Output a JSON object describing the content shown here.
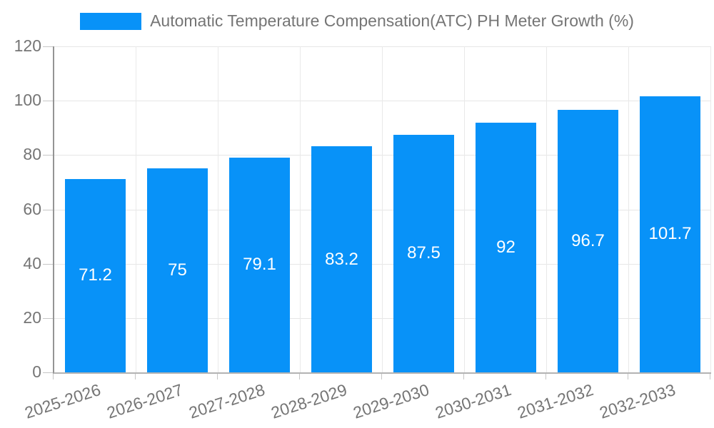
{
  "legend": {
    "series_label": "Automatic Temperature Compensation(ATC) PH Meter Growth (%)"
  },
  "chart_data": {
    "type": "bar",
    "title": "Automatic Temperature Compensation(ATC) PH Meter Growth (%)",
    "categories": [
      "2025-2026",
      "2026-2027",
      "2027-2028",
      "2028-2029",
      "2029-2030",
      "2030-2031",
      "2031-2032",
      "2032-2033"
    ],
    "values": [
      71.2,
      75,
      79.1,
      83.2,
      87.5,
      92,
      96.7,
      101.7
    ],
    "value_labels": [
      "71.2",
      "75",
      "79.1",
      "83.2",
      "87.5",
      "92",
      "96.7",
      "101.7"
    ],
    "xlabel": "",
    "ylabel": "",
    "ylim": [
      0,
      120
    ],
    "ytick_interval": 20,
    "ytick_labels": [
      "0",
      "20",
      "40",
      "60",
      "80",
      "100",
      "120"
    ],
    "grid": true,
    "legend_position": "top",
    "colors": {
      "bar": "#0892f8",
      "value_label_text": "#ffffff",
      "axis_text": "#757575",
      "hgrid": "#e6e6e6",
      "vgrid": "#e9e9e9",
      "tick": "#c6c6c6",
      "y_axis_line": "#949494",
      "x_axis_line": "#b3b3b3"
    }
  }
}
